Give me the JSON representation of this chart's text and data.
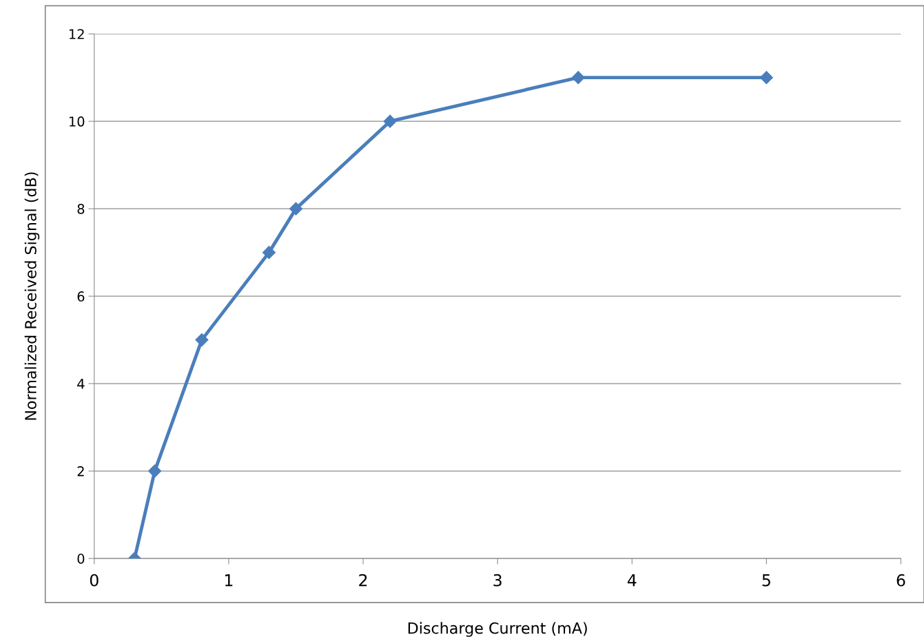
{
  "chart_data": {
    "type": "line",
    "xlabel": "Discharge Current (mA)",
    "ylabel": "Normalized Received Signal (dB)",
    "x": [
      0.3,
      0.45,
      0.8,
      1.3,
      1.5,
      2.2,
      3.6,
      5
    ],
    "series": [
      {
        "color": "#4a7ebb",
        "values": [
          0,
          2,
          5,
          7,
          8,
          10,
          11,
          11
        ]
      }
    ],
    "xlim": [
      0,
      6
    ],
    "xticks": [
      0,
      1,
      2,
      3,
      4,
      5,
      6
    ],
    "ylim": [
      0,
      12
    ],
    "yticks": [
      0,
      2,
      4,
      6,
      8,
      10,
      12
    ],
    "grid": "y",
    "marker": "diamond",
    "line_style": "solid"
  }
}
